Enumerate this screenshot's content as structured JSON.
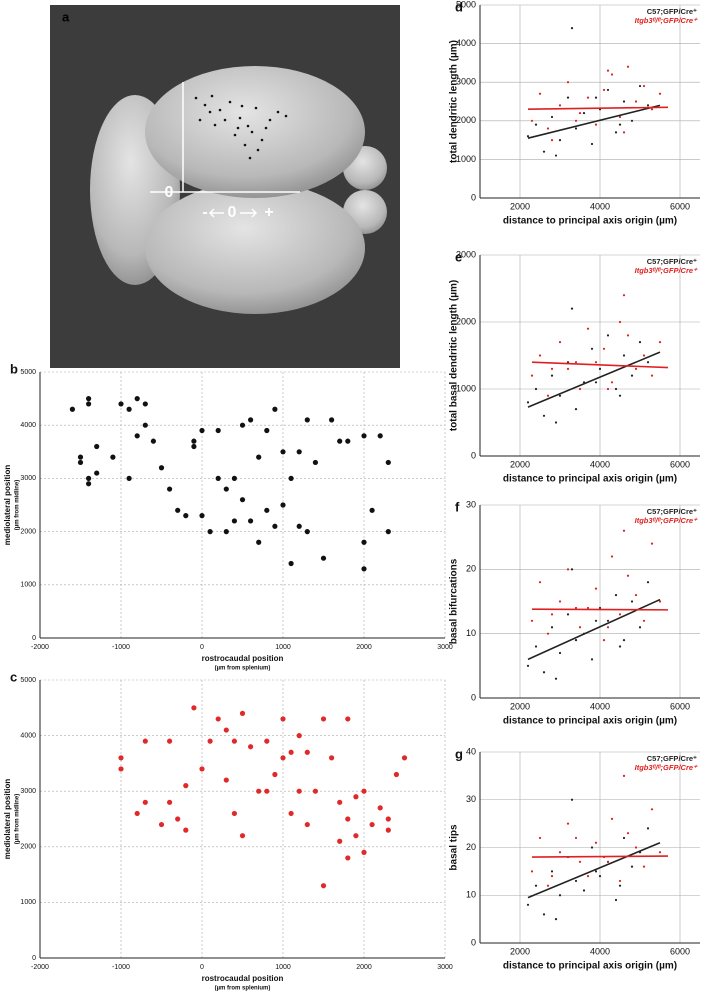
{
  "brain_image": {
    "panel_label": "a",
    "origin_label": "0",
    "minus": "-",
    "zero": "0",
    "plus": "+"
  },
  "chart_data": [
    {
      "type": "scatter",
      "panel_label": "b",
      "color": "#111111",
      "grid": true,
      "xlabel": "rostrocaudal position",
      "xlabel_note": "(µm from splenium)",
      "ylabel": "mediolateral position",
      "ylabel_note": "(µm from midline)",
      "xlim": [
        -2000,
        3000
      ],
      "xticks": [
        -2000,
        -1000,
        0,
        1000,
        2000,
        3000
      ],
      "ylim": [
        0,
        5000
      ],
      "yticks": [
        0,
        1000,
        2000,
        3000,
        4000,
        5000
      ],
      "x": [
        -1600,
        -1400,
        -1400,
        -1300,
        -1500,
        -1400,
        -1300,
        -1400,
        -1500,
        -1000,
        -900,
        -800,
        -700,
        -900,
        -1100,
        -800,
        -700,
        -600,
        -500,
        -400,
        -300,
        -200,
        -100,
        -100,
        0,
        0,
        100,
        200,
        200,
        300,
        300,
        400,
        400,
        500,
        500,
        600,
        600,
        700,
        700,
        800,
        800,
        900,
        900,
        1000,
        1000,
        1100,
        1100,
        1200,
        1200,
        1300,
        1300,
        1400,
        1500,
        1600,
        1700,
        1800,
        2000,
        2000,
        2100,
        2200,
        2300,
        2300,
        2000
      ],
      "values": [
        4300,
        4500,
        4400,
        3600,
        3300,
        3000,
        3100,
        2900,
        3400,
        4400,
        4300,
        4500,
        4400,
        3000,
        3400,
        3800,
        4000,
        3700,
        3200,
        2800,
        2400,
        2300,
        3600,
        3700,
        2300,
        3900,
        2000,
        3900,
        3000,
        2800,
        2000,
        3000,
        2200,
        2600,
        4000,
        2200,
        4100,
        3400,
        1800,
        2400,
        3900,
        4300,
        2100,
        3500,
        2500,
        1400,
        3000,
        2100,
        3500,
        4100,
        2000,
        3300,
        1500,
        4100,
        3700,
        3700,
        3800,
        1300,
        2400,
        3800,
        3300,
        2000,
        1800
      ]
    },
    {
      "type": "scatter",
      "panel_label": "c",
      "color": "#e02a2a",
      "grid": true,
      "xlabel": "rostrocaudal position",
      "xlabel_note": "(µm from splenium)",
      "ylabel": "mediolateral position",
      "ylabel_note": "(µm from midline)",
      "xlim": [
        -2000,
        3000
      ],
      "xticks": [
        -2000,
        -1000,
        0,
        1000,
        2000,
        3000
      ],
      "ylim": [
        0,
        5000
      ],
      "yticks": [
        0,
        1000,
        2000,
        3000,
        4000,
        5000
      ],
      "x": [
        -1000,
        -1000,
        -800,
        -700,
        -700,
        -500,
        -400,
        -400,
        -300,
        -200,
        -200,
        -100,
        0,
        100,
        200,
        300,
        300,
        400,
        400,
        500,
        500,
        600,
        700,
        800,
        800,
        900,
        1000,
        1000,
        1100,
        1100,
        1200,
        1200,
        1300,
        1300,
        1400,
        1500,
        1500,
        1600,
        1700,
        1700,
        1800,
        1800,
        1900,
        1900,
        2000,
        2000,
        2100,
        2200,
        2300,
        2400,
        2500,
        2300,
        1800
      ],
      "values": [
        3600,
        3400,
        2600,
        3900,
        2800,
        2400,
        3900,
        2800,
        2500,
        3100,
        2300,
        4500,
        3400,
        3900,
        4300,
        3200,
        4100,
        2600,
        3900,
        4400,
        2200,
        3800,
        3000,
        3000,
        3900,
        3300,
        4300,
        3600,
        2600,
        3700,
        3000,
        4000,
        3700,
        2400,
        3000,
        4300,
        1300,
        3600,
        2800,
        2100,
        2500,
        4300,
        2900,
        2200,
        1900,
        3000,
        2400,
        2700,
        2300,
        3300,
        3600,
        2500,
        1800
      ]
    },
    {
      "type": "scatter",
      "panel_label": "d",
      "grid": true,
      "xlabel": "distance to principal axis origin (µm)",
      "ylabel": "total dendritic length (µm)",
      "xlim": [
        1000,
        6500
      ],
      "xticks": [
        2000,
        4000,
        6000
      ],
      "ylim": [
        0,
        5000
      ],
      "yticks": [
        0,
        1000,
        2000,
        3000,
        4000,
        5000
      ],
      "series": [
        {
          "name": "C57;GFP/Cre⁺",
          "color": "#222222",
          "x": [
            2200,
            2400,
            2600,
            2800,
            3000,
            3200,
            3400,
            3600,
            3800,
            4000,
            4200,
            4400,
            4600,
            4800,
            5000,
            5200,
            3300,
            3900,
            4500,
            2900
          ],
          "values": [
            1600,
            1900,
            1200,
            2100,
            1500,
            2600,
            1800,
            2200,
            1400,
            2300,
            2800,
            1700,
            2500,
            2000,
            2900,
            2400,
            4400,
            2600,
            1900,
            1100
          ]
        },
        {
          "name": "Itgb3ᶠˡ/ᶠˡ;GFP/Cre⁺",
          "color": "#e02020",
          "x": [
            2300,
            2500,
            2700,
            3000,
            3200,
            3500,
            3700,
            3900,
            4100,
            4300,
            4500,
            4700,
            4900,
            5100,
            5300,
            5500,
            4600,
            4200,
            3400,
            2800
          ],
          "values": [
            2000,
            2700,
            1800,
            2400,
            3000,
            2200,
            2600,
            1900,
            2800,
            3200,
            2100,
            3400,
            2500,
            2900,
            2300,
            2700,
            1700,
            3300,
            2000,
            1500
          ]
        }
      ],
      "fit_lines": [
        {
          "color": "#222222",
          "x": [
            2200,
            5500
          ],
          "values": [
            1550,
            2400
          ]
        },
        {
          "color": "#e02020",
          "x": [
            2200,
            5700
          ],
          "values": [
            2300,
            2350
          ]
        }
      ]
    },
    {
      "type": "scatter",
      "panel_label": "e",
      "grid": true,
      "xlabel": "distance to principal axis origin (µm)",
      "ylabel": "total basal dendritic length (µm)",
      "xlim": [
        1000,
        6500
      ],
      "xticks": [
        2000,
        4000,
        6000
      ],
      "ylim": [
        0,
        3000
      ],
      "yticks": [
        0,
        1000,
        2000,
        3000
      ],
      "series": [
        {
          "name": "C57;GFP/Cre⁺",
          "color": "#222222",
          "x": [
            2200,
            2400,
            2600,
            2800,
            3000,
            3200,
            3400,
            3600,
            3800,
            4000,
            4200,
            4400,
            4600,
            4800,
            5000,
            5200,
            3300,
            3900,
            4500,
            2900
          ],
          "values": [
            800,
            1000,
            600,
            1200,
            900,
            1400,
            700,
            1100,
            1600,
            1300,
            1800,
            1000,
            1500,
            1200,
            1700,
            1400,
            2200,
            1100,
            900,
            500
          ]
        },
        {
          "name": "Itgb3ᶠˡ/ᶠˡ;GFP/Cre⁺",
          "color": "#e02020",
          "x": [
            2300,
            2500,
            2700,
            3000,
            3200,
            3500,
            3700,
            3900,
            4100,
            4300,
            4500,
            4700,
            4900,
            5100,
            5300,
            5500,
            4600,
            4200,
            3400,
            2800
          ],
          "values": [
            1200,
            1500,
            900,
            1700,
            1300,
            1000,
            1900,
            1400,
            1600,
            1100,
            2000,
            1800,
            1300,
            1500,
            1200,
            1700,
            2400,
            1000,
            1400,
            1300
          ]
        }
      ],
      "fit_lines": [
        {
          "color": "#222222",
          "x": [
            2200,
            5500
          ],
          "values": [
            730,
            1550
          ]
        },
        {
          "color": "#e02020",
          "x": [
            2300,
            5700
          ],
          "values": [
            1400,
            1320
          ]
        }
      ]
    },
    {
      "type": "scatter",
      "panel_label": "f",
      "grid": true,
      "xlabel": "distance to principal axis origin (µm)",
      "ylabel": "basal bifurcations",
      "xlim": [
        1000,
        6500
      ],
      "xticks": [
        2000,
        4000,
        6000
      ],
      "ylim": [
        0,
        30
      ],
      "yticks": [
        0,
        10,
        20,
        30
      ],
      "series": [
        {
          "name": "C57;GFP/Cre⁺",
          "color": "#222222",
          "x": [
            2200,
            2400,
            2600,
            2800,
            3000,
            3200,
            3400,
            3600,
            3800,
            4000,
            4200,
            4400,
            4600,
            4800,
            5000,
            5200,
            3300,
            3900,
            4500,
            2900
          ],
          "values": [
            5,
            8,
            4,
            11,
            7,
            13,
            9,
            10,
            6,
            14,
            12,
            16,
            9,
            15,
            11,
            18,
            20,
            12,
            8,
            3
          ]
        },
        {
          "name": "Itgb3ᶠˡ/ᶠˡ;GFP/Cre⁺",
          "color": "#e02020",
          "x": [
            2300,
            2500,
            2700,
            3000,
            3200,
            3500,
            3700,
            3900,
            4100,
            4300,
            4500,
            4700,
            4900,
            5100,
            5300,
            5500,
            4600,
            4200,
            3400,
            2800
          ],
          "values": [
            12,
            18,
            10,
            15,
            20,
            11,
            14,
            17,
            9,
            22,
            13,
            19,
            16,
            12,
            24,
            15,
            26,
            11,
            14,
            13
          ]
        }
      ],
      "fit_lines": [
        {
          "color": "#222222",
          "x": [
            2200,
            5500
          ],
          "values": [
            6,
            15.3
          ]
        },
        {
          "color": "#e02020",
          "x": [
            2300,
            5700
          ],
          "values": [
            13.8,
            13.7
          ]
        }
      ]
    },
    {
      "type": "scatter",
      "panel_label": "g",
      "grid": true,
      "xlabel": "distance to principal axis origin (µm)",
      "ylabel": "basal tips",
      "xlim": [
        1000,
        6500
      ],
      "xticks": [
        2000,
        4000,
        6000
      ],
      "ylim": [
        0,
        40
      ],
      "yticks": [
        0,
        10,
        20,
        30,
        40
      ],
      "series": [
        {
          "name": "C57;GFP/Cre⁺",
          "color": "#222222",
          "x": [
            2200,
            2400,
            2600,
            2800,
            3000,
            3200,
            3400,
            3600,
            3800,
            4000,
            4200,
            4400,
            4600,
            4800,
            5000,
            5200,
            3300,
            3900,
            4500,
            2900
          ],
          "values": [
            8,
            12,
            6,
            15,
            10,
            18,
            13,
            11,
            20,
            14,
            17,
            9,
            22,
            16,
            19,
            24,
            30,
            15,
            12,
            5
          ]
        },
        {
          "name": "Itgb3ᶠˡ/ᶠˡ;GFP/Cre⁺",
          "color": "#e02020",
          "x": [
            2300,
            2500,
            2700,
            3000,
            3200,
            3500,
            3700,
            3900,
            4100,
            4300,
            4500,
            4700,
            4900,
            5100,
            5300,
            5500,
            4600,
            4200,
            3400,
            2800
          ],
          "values": [
            15,
            22,
            12,
            19,
            25,
            17,
            14,
            21,
            18,
            26,
            13,
            23,
            20,
            16,
            28,
            19,
            35,
            17,
            22,
            14
          ]
        }
      ],
      "fit_lines": [
        {
          "color": "#222222",
          "x": [
            2200,
            5500
          ],
          "values": [
            9.5,
            21
          ]
        },
        {
          "color": "#e02020",
          "x": [
            2300,
            5700
          ],
          "values": [
            18,
            18.2
          ]
        }
      ]
    }
  ]
}
